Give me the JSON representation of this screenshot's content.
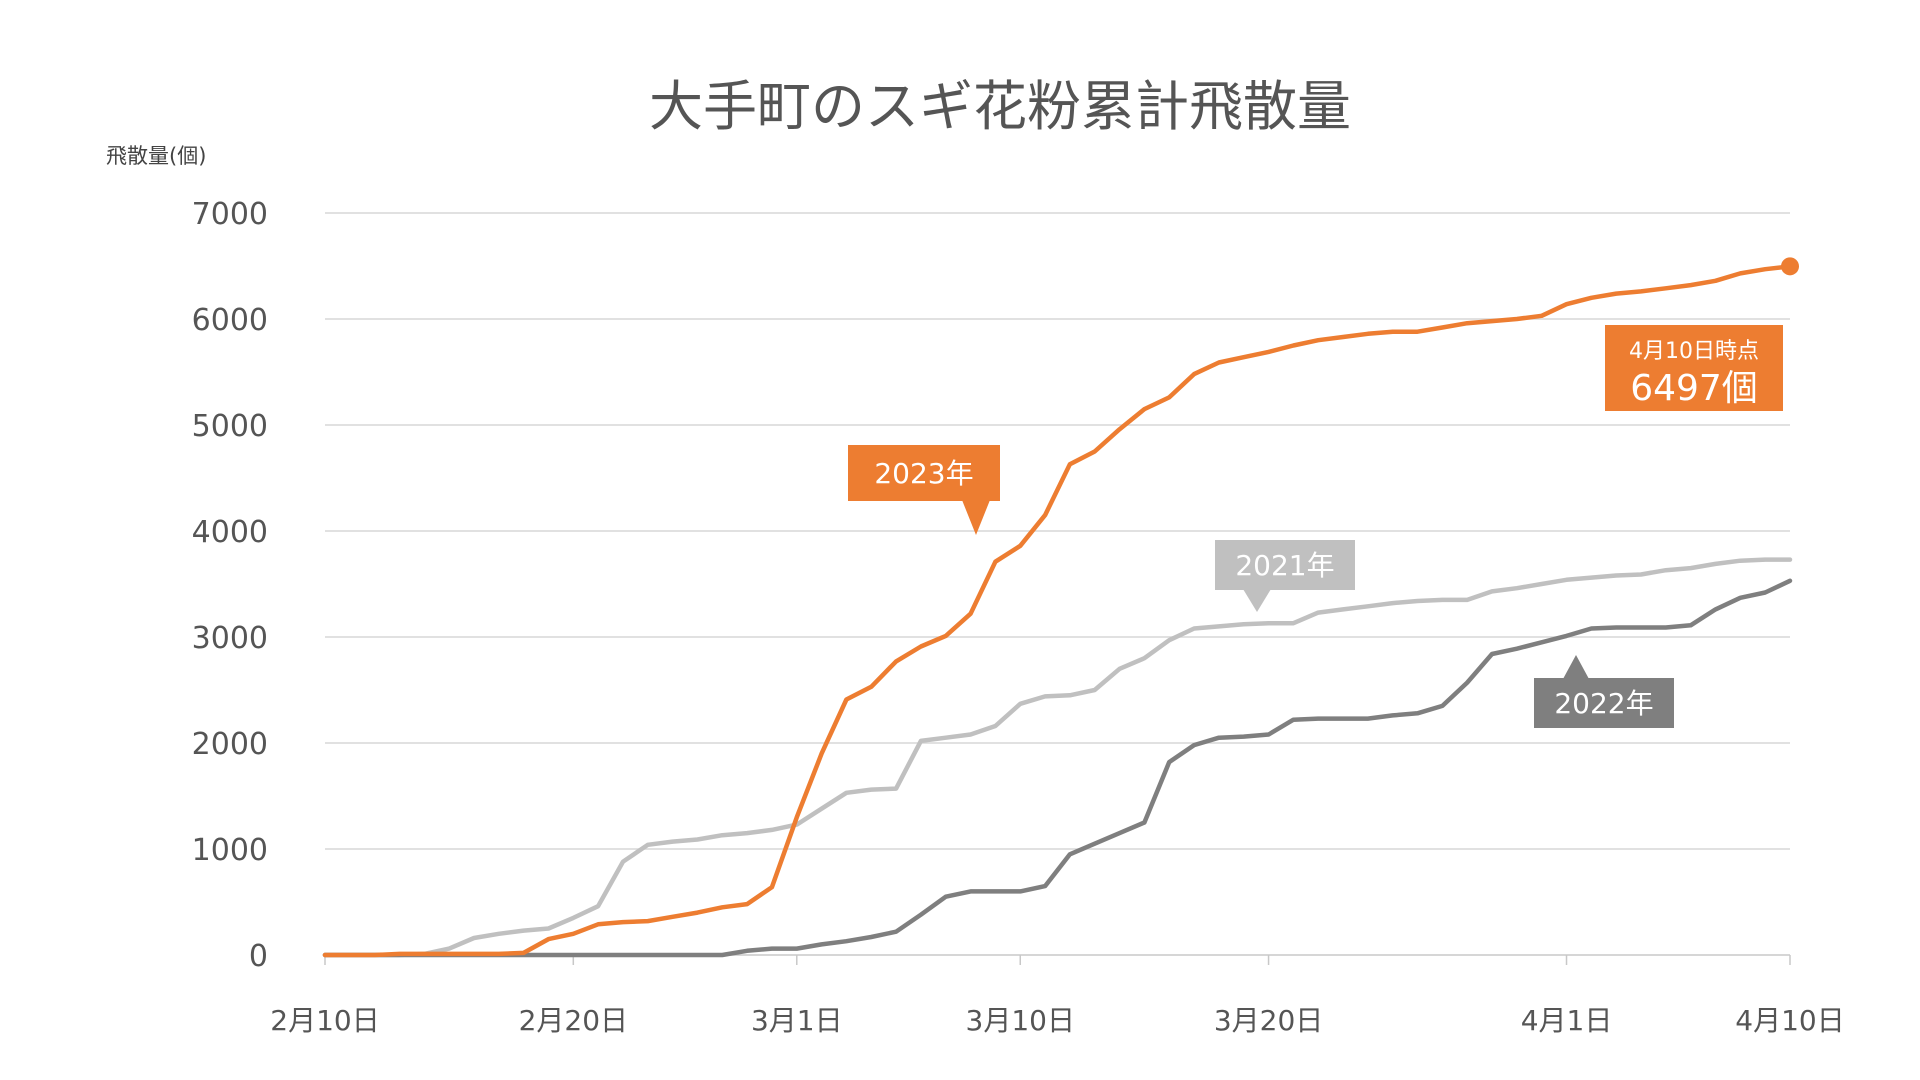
{
  "chart_data": {
    "type": "line",
    "title": "大手町のスギ花粉累計飛散量",
    "ylabel": "飛散量(個)",
    "xlabel": "",
    "ylim": [
      0,
      7000
    ],
    "y_ticks": [
      0,
      1000,
      2000,
      3000,
      4000,
      5000,
      6000,
      7000
    ],
    "y_tick_labels": [
      "0",
      "1000",
      "2000",
      "3000",
      "4000",
      "5000",
      "6000",
      "7000"
    ],
    "x_ticks": [
      {
        "date": "2023-02-10",
        "label": "2月10日"
      },
      {
        "date": "2023-02-20",
        "label": "2月20日"
      },
      {
        "date": "2023-03-01",
        "label": "3月1日"
      },
      {
        "date": "2023-03-10",
        "label": "3月10日"
      },
      {
        "date": "2023-03-20",
        "label": "3月20日"
      },
      {
        "date": "2023-04-01",
        "label": "4月1日"
      },
      {
        "date": "2023-04-10",
        "label": "4月10日"
      }
    ],
    "xlim": [
      "2023-02-10",
      "2023-04-10"
    ],
    "grid": true,
    "series": [
      {
        "name": "2021年",
        "color": "#c0c0c0",
        "x": [
          "2023-02-10",
          "2023-02-11",
          "2023-02-12",
          "2023-02-13",
          "2023-02-14",
          "2023-02-15",
          "2023-02-16",
          "2023-02-17",
          "2023-02-18",
          "2023-02-19",
          "2023-02-20",
          "2023-02-21",
          "2023-02-22",
          "2023-02-23",
          "2023-02-24",
          "2023-02-25",
          "2023-02-26",
          "2023-02-27",
          "2023-02-28",
          "2023-03-01",
          "2023-03-02",
          "2023-03-03",
          "2023-03-04",
          "2023-03-05",
          "2023-03-06",
          "2023-03-07",
          "2023-03-08",
          "2023-03-09",
          "2023-03-10",
          "2023-03-11",
          "2023-03-12",
          "2023-03-13",
          "2023-03-14",
          "2023-03-15",
          "2023-03-16",
          "2023-03-17",
          "2023-03-18",
          "2023-03-19",
          "2023-03-20",
          "2023-03-21",
          "2023-03-22",
          "2023-03-23",
          "2023-03-24",
          "2023-03-25",
          "2023-03-26",
          "2023-03-27",
          "2023-03-28",
          "2023-03-29",
          "2023-03-30",
          "2023-03-31",
          "2023-04-01",
          "2023-04-02",
          "2023-04-03",
          "2023-04-04",
          "2023-04-05",
          "2023-04-06",
          "2023-04-07",
          "2023-04-08",
          "2023-04-09",
          "2023-04-10"
        ],
        "values": [
          0,
          0,
          0,
          0,
          10,
          60,
          160,
          200,
          230,
          250,
          350,
          460,
          880,
          1040,
          1070,
          1090,
          1130,
          1150,
          1180,
          1230,
          1380,
          1530,
          1560,
          1570,
          2020,
          2050,
          2080,
          2160,
          2370,
          2440,
          2450,
          2500,
          2700,
          2800,
          2970,
          3080,
          3100,
          3120,
          3130,
          3130,
          3230,
          3260,
          3290,
          3320,
          3340,
          3350,
          3350,
          3430,
          3460,
          3500,
          3540,
          3560,
          3580,
          3590,
          3630,
          3650,
          3690,
          3720,
          3730,
          3730
        ]
      },
      {
        "name": "2022年",
        "color": "#7f7f7f",
        "x": [
          "2023-02-10",
          "2023-02-11",
          "2023-02-12",
          "2023-02-13",
          "2023-02-14",
          "2023-02-15",
          "2023-02-16",
          "2023-02-17",
          "2023-02-18",
          "2023-02-19",
          "2023-02-20",
          "2023-02-21",
          "2023-02-22",
          "2023-02-23",
          "2023-02-24",
          "2023-02-25",
          "2023-02-26",
          "2023-02-27",
          "2023-02-28",
          "2023-03-01",
          "2023-03-02",
          "2023-03-03",
          "2023-03-04",
          "2023-03-05",
          "2023-03-06",
          "2023-03-07",
          "2023-03-08",
          "2023-03-09",
          "2023-03-10",
          "2023-03-11",
          "2023-03-12",
          "2023-03-13",
          "2023-03-14",
          "2023-03-15",
          "2023-03-16",
          "2023-03-17",
          "2023-03-18",
          "2023-03-19",
          "2023-03-20",
          "2023-03-21",
          "2023-03-22",
          "2023-03-23",
          "2023-03-24",
          "2023-03-25",
          "2023-03-26",
          "2023-03-27",
          "2023-03-28",
          "2023-03-29",
          "2023-03-30",
          "2023-03-31",
          "2023-04-01",
          "2023-04-02",
          "2023-04-03",
          "2023-04-04",
          "2023-04-05",
          "2023-04-06",
          "2023-04-07",
          "2023-04-08",
          "2023-04-09",
          "2023-04-10"
        ],
        "values": [
          0,
          0,
          0,
          0,
          0,
          0,
          0,
          0,
          0,
          0,
          0,
          0,
          0,
          0,
          0,
          0,
          0,
          40,
          60,
          60,
          100,
          130,
          170,
          220,
          380,
          550,
          600,
          600,
          600,
          650,
          950,
          1050,
          1150,
          1250,
          1820,
          1980,
          2050,
          2060,
          2080,
          2220,
          2230,
          2230,
          2230,
          2260,
          2280,
          2350,
          2570,
          2840,
          2890,
          2950,
          3010,
          3080,
          3090,
          3090,
          3090,
          3110,
          3260,
          3370,
          3420,
          3530
        ]
      },
      {
        "name": "2023年",
        "color": "#ed7d31",
        "x": [
          "2023-02-10",
          "2023-02-11",
          "2023-02-12",
          "2023-02-13",
          "2023-02-14",
          "2023-02-15",
          "2023-02-16",
          "2023-02-17",
          "2023-02-18",
          "2023-02-19",
          "2023-02-20",
          "2023-02-21",
          "2023-02-22",
          "2023-02-23",
          "2023-02-24",
          "2023-02-25",
          "2023-02-26",
          "2023-02-27",
          "2023-02-28",
          "2023-03-01",
          "2023-03-02",
          "2023-03-03",
          "2023-03-04",
          "2023-03-05",
          "2023-03-06",
          "2023-03-07",
          "2023-03-08",
          "2023-03-09",
          "2023-03-10",
          "2023-03-11",
          "2023-03-12",
          "2023-03-13",
          "2023-03-14",
          "2023-03-15",
          "2023-03-16",
          "2023-03-17",
          "2023-03-18",
          "2023-03-19",
          "2023-03-20",
          "2023-03-21",
          "2023-03-22",
          "2023-03-23",
          "2023-03-24",
          "2023-03-25",
          "2023-03-26",
          "2023-03-27",
          "2023-03-28",
          "2023-03-29",
          "2023-03-30",
          "2023-03-31",
          "2023-04-01",
          "2023-04-02",
          "2023-04-03",
          "2023-04-04",
          "2023-04-05",
          "2023-04-06",
          "2023-04-07",
          "2023-04-08",
          "2023-04-09",
          "2023-04-10"
        ],
        "values": [
          0,
          0,
          0,
          10,
          10,
          10,
          10,
          10,
          20,
          150,
          200,
          290,
          310,
          320,
          360,
          400,
          450,
          480,
          640,
          1300,
          1900,
          2410,
          2530,
          2770,
          2910,
          3010,
          3220,
          3710,
          3860,
          4150,
          4630,
          4750,
          4960,
          5150,
          5260,
          5480,
          5590,
          5640,
          5690,
          5750,
          5800,
          5830,
          5860,
          5880,
          5880,
          5920,
          5960,
          5980,
          6000,
          6030,
          6140,
          6200,
          6240,
          6260,
          6290,
          6320,
          6360,
          6430,
          6470,
          6497
        ]
      }
    ],
    "annotations": [
      {
        "series": "2021年",
        "text": "2021年",
        "color": "#c0c0c0"
      },
      {
        "series": "2022年",
        "text": "2022年",
        "color": "#7f7f7f"
      },
      {
        "series": "2023年",
        "text": "2023年",
        "color": "#ed7d31"
      },
      {
        "series": "2023年",
        "line1": "4月10日時点",
        "line2": "6497個",
        "color": "#ed7d31"
      }
    ]
  }
}
